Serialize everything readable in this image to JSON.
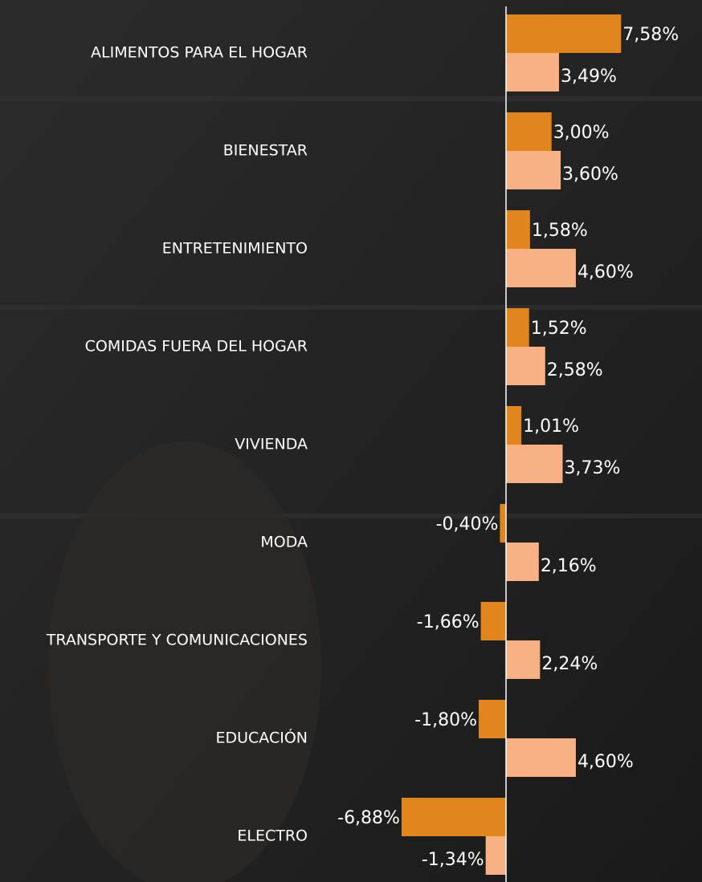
{
  "chart_data": {
    "type": "bar",
    "orientation": "horizontal",
    "categories": [
      "ALIMENTOS PARA EL HOGAR",
      "BIENESTAR",
      "ENTRETENIMIENTO",
      "COMIDAS FUERA DEL HOGAR",
      "VIVIENDA",
      "MODA",
      "TRANSPORTE Y COMUNICACIONES",
      "EDUCACIÓN",
      "ELECTRO"
    ],
    "series": [
      {
        "color": "#e0861c",
        "values": [
          7.58,
          3.0,
          1.58,
          1.52,
          1.01,
          -0.4,
          -1.66,
          -1.8,
          -6.88
        ],
        "value_labels": [
          "7,58%",
          "3,00%",
          "1,58%",
          "1,52%",
          "1,01%",
          "-0,40%",
          "-1,66%",
          "-1,80%",
          "-6,88%"
        ]
      },
      {
        "color": "#f7b184",
        "values": [
          3.49,
          3.6,
          4.6,
          2.58,
          3.73,
          2.16,
          2.24,
          4.6,
          -1.34
        ],
        "value_labels": [
          "3,49%",
          "3,60%",
          "4,60%",
          "2,58%",
          "3,73%",
          "2,16%",
          "2,24%",
          "4,60%",
          "-1,34%"
        ]
      }
    ]
  }
}
